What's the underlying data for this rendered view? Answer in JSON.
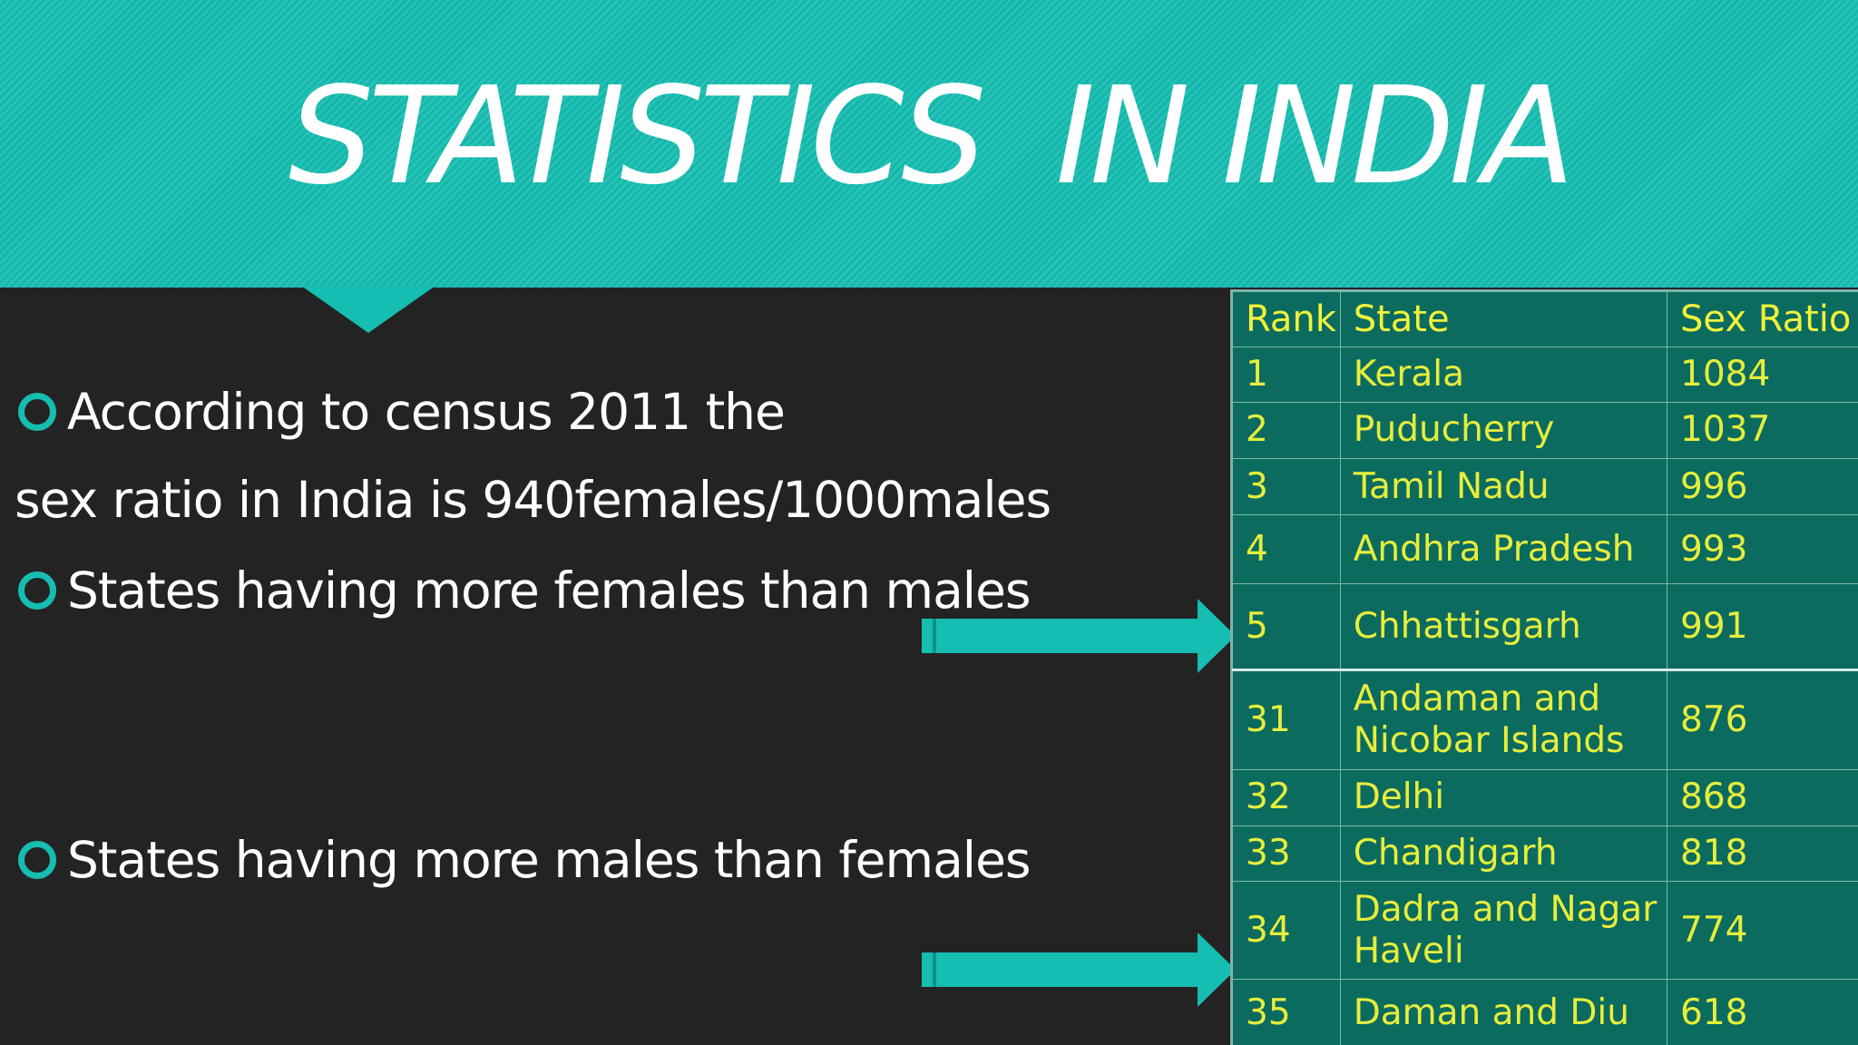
{
  "title": "STATISTICS  IN INDIA",
  "bullets": {
    "b1_line1": "According to census 2011 the",
    "b1_line2": "sex ratio in India is 940females/1000males",
    "b2": "States having more females than males",
    "b3": "States having more males than females"
  },
  "table": {
    "headers": {
      "rank": "Rank",
      "state": "State",
      "ratio": "Sex Ratio"
    },
    "rows": [
      {
        "rank": "1",
        "state": "Kerala",
        "ratio": "1084"
      },
      {
        "rank": "2",
        "state": "Puducherry",
        "ratio": "1037"
      },
      {
        "rank": "3",
        "state": "Tamil Nadu",
        "ratio": "996"
      },
      {
        "rank": "4",
        "state": "Andhra Pradesh",
        "ratio": "993"
      },
      {
        "rank": "5",
        "state": "Chhattisgarh",
        "ratio": "991"
      },
      {
        "rank": "31",
        "state_line1": "Andaman and",
        "state_line2": "Nicobar Islands",
        "ratio": "876"
      },
      {
        "rank": "32",
        "state": "Delhi",
        "ratio": "868"
      },
      {
        "rank": "33",
        "state": "Chandigarh",
        "ratio": "818"
      },
      {
        "rank": "34",
        "state_line1": "Dadra and Nagar",
        "state_line2": "Haveli",
        "ratio": "774"
      },
      {
        "rank": "35",
        "state": "Daman and Diu",
        "ratio": "618"
      }
    ]
  },
  "colors": {
    "accent": "#16bdb1",
    "background": "#242324",
    "table_fill": "#0c6b5f",
    "table_text": "#e6ee3c",
    "text": "#ffffff"
  }
}
